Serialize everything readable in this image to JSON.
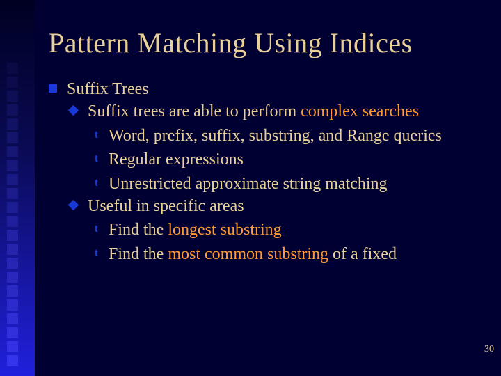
{
  "title": "Pattern Matching Using Indices",
  "page_number": "30",
  "colors": {
    "background": "#000033",
    "text": "#e8d098",
    "highlight": "#ff9933",
    "bullet": "#1838d8"
  },
  "decorative_squares": [
    "#0a0a44",
    "#0c0c4c",
    "#0e0e54",
    "#10105c",
    "#121264",
    "#14146c",
    "#161674",
    "#18187c",
    "#1a1a84",
    "#1c1c8c",
    "#1e1e94",
    "#20209c",
    "#2222a4",
    "#2424ac",
    "#2626b4",
    "#2828bc",
    "#2a2ac4",
    "#2c2ccc",
    "#2e2ed4",
    "#3030dc",
    "#3232e4",
    "#3434ec"
  ],
  "items": {
    "l1": "Suffix Trees",
    "l2a_pre": "Suffix trees are able to perform ",
    "l2a_hl": "complex searches",
    "l3a": "Word, prefix, suffix, substring, and Range queries",
    "l3b": "Regular expressions",
    "l3c": "Unrestricted approximate string matching",
    "l2b": "Useful in specific areas",
    "l3d_pre": "Find the ",
    "l3d_hl": "longest substring",
    "l3e_pre": "Find the ",
    "l3e_hl": "most common substring",
    "l3e_post": " of a fixed"
  }
}
